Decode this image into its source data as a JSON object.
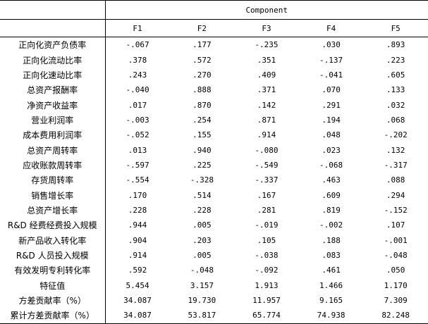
{
  "header": {
    "group_label": "Component",
    "columns": [
      "F1",
      "F2",
      "F3",
      "F4",
      "F5"
    ]
  },
  "rows": [
    {
      "label": "正向化资产负债率",
      "values": [
        "-.067",
        ".177",
        "-.235",
        ".030",
        ".893"
      ]
    },
    {
      "label": "正向化流动比率",
      "values": [
        ".378",
        ".572",
        ".351",
        "-.137",
        ".223"
      ]
    },
    {
      "label": "正向化速动比率",
      "values": [
        ".243",
        ".270",
        ".409",
        "-.041",
        ".605"
      ]
    },
    {
      "label": "总资产报酬率",
      "values": [
        "-.040",
        ".888",
        ".371",
        ".070",
        ".133"
      ]
    },
    {
      "label": "净资产收益率",
      "values": [
        ".017",
        ".870",
        ".142",
        ".291",
        ".032"
      ]
    },
    {
      "label": "营业利润率",
      "values": [
        "-.003",
        ".254",
        ".871",
        ".194",
        ".068"
      ]
    },
    {
      "label": "成本费用利润率",
      "values": [
        "-.052",
        ".155",
        ".914",
        ".048",
        "-.202"
      ]
    },
    {
      "label": "总资产周转率",
      "values": [
        ".013",
        ".940",
        "-.080",
        ".023",
        ".132"
      ]
    },
    {
      "label": "应收账款周转率",
      "values": [
        "-.597",
        ".225",
        "-.549",
        "-.068",
        "-.317"
      ]
    },
    {
      "label": "存货周转率",
      "values": [
        "-.554",
        "-.328",
        "-.337",
        ".463",
        ".088"
      ]
    },
    {
      "label": "销售增长率",
      "values": [
        ".170",
        ".514",
        ".167",
        ".609",
        ".294"
      ]
    },
    {
      "label": "总资产增长率",
      "values": [
        ".228",
        ".228",
        ".281",
        ".819",
        "-.152"
      ]
    },
    {
      "label": "R&D 经费经费投入规模",
      "values": [
        ".944",
        ".005",
        "-.019",
        "-.002",
        ".107"
      ]
    },
    {
      "label": "新产品收入转化率",
      "values": [
        ".904",
        ".203",
        ".105",
        ".188",
        "-.001"
      ]
    },
    {
      "label": "R&D 人员投入规模",
      "values": [
        ".914",
        ".005",
        "-.038",
        ".083",
        "-.048"
      ]
    },
    {
      "label": "有效发明专利转化率",
      "values": [
        ".592",
        "-.048",
        "-.092",
        ".461",
        ".050"
      ]
    },
    {
      "label": "特征值",
      "values": [
        "5.454",
        "3.157",
        "1.913",
        "1.466",
        "1.170"
      ]
    },
    {
      "label": "方差贡献率（%）",
      "values": [
        "34.087",
        "19.730",
        "11.957",
        "9.165",
        "7.309"
      ]
    },
    {
      "label": "累计方差贡献率（%）",
      "values": [
        "34.087",
        "53.817",
        "65.774",
        "74.938",
        "82.248"
      ]
    }
  ]
}
